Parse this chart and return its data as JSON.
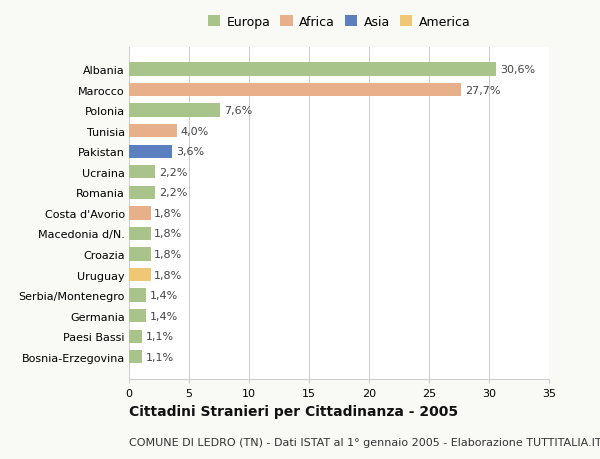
{
  "countries": [
    "Albania",
    "Marocco",
    "Polonia",
    "Tunisia",
    "Pakistan",
    "Ucraina",
    "Romania",
    "Costa d'Avorio",
    "Macedonia d/N.",
    "Croazia",
    "Uruguay",
    "Serbia/Montenegro",
    "Germania",
    "Paesi Bassi",
    "Bosnia-Erzegovina"
  ],
  "values": [
    30.6,
    27.7,
    7.6,
    4.0,
    3.6,
    2.2,
    2.2,
    1.8,
    1.8,
    1.8,
    1.8,
    1.4,
    1.4,
    1.1,
    1.1
  ],
  "labels": [
    "30,6%",
    "27,7%",
    "7,6%",
    "4,0%",
    "3,6%",
    "2,2%",
    "2,2%",
    "1,8%",
    "1,8%",
    "1,8%",
    "1,8%",
    "1,4%",
    "1,4%",
    "1,1%",
    "1,1%"
  ],
  "colors": [
    "#a8c48a",
    "#e8b08a",
    "#a8c48a",
    "#e8b08a",
    "#5b7fbf",
    "#a8c48a",
    "#a8c48a",
    "#e8b08a",
    "#a8c48a",
    "#a8c48a",
    "#f0c875",
    "#a8c48a",
    "#a8c48a",
    "#a8c48a",
    "#a8c48a"
  ],
  "legend_labels": [
    "Europa",
    "Africa",
    "Asia",
    "America"
  ],
  "legend_colors": [
    "#a8c48a",
    "#e8b08a",
    "#5b7fbf",
    "#f0c875"
  ],
  "xlim": [
    0,
    35
  ],
  "xticks": [
    0,
    5,
    10,
    15,
    20,
    25,
    30,
    35
  ],
  "title": "Cittadini Stranieri per Cittadinanza - 2005",
  "subtitle": "COMUNE DI LEDRO (TN) - Dati ISTAT al 1° gennaio 2005 - Elaborazione TUTTITALIA.IT",
  "background_color": "#f9f9f6",
  "bar_background": "#ffffff",
  "grid_color": "#cccccc",
  "title_fontsize": 10,
  "subtitle_fontsize": 8,
  "label_fontsize": 8,
  "tick_fontsize": 8,
  "legend_fontsize": 9
}
